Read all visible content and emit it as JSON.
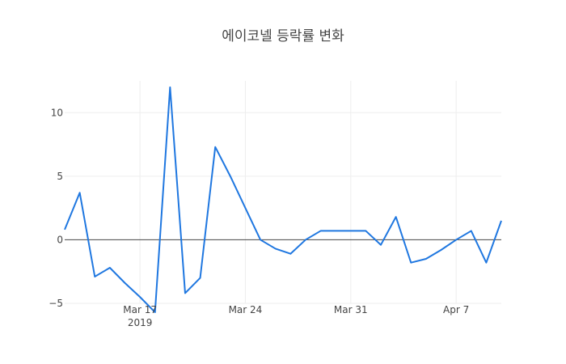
{
  "chart_data": {
    "type": "line",
    "title": "에이코넬 등락률 변화",
    "xlabel": "",
    "ylabel": "",
    "x_range": [
      "2019-03-12",
      "2019-04-10"
    ],
    "ylim": [
      -5.0,
      12.5
    ],
    "x_ticks": [
      {
        "date": "2019-03-17",
        "label": "Mar 17",
        "sublabel": "2019"
      },
      {
        "date": "2019-03-24",
        "label": "Mar 24",
        "sublabel": ""
      },
      {
        "date": "2019-03-31",
        "label": "Mar 31",
        "sublabel": ""
      },
      {
        "date": "2019-04-07",
        "label": "Apr 7",
        "sublabel": ""
      }
    ],
    "y_ticks": [
      {
        "value": -5,
        "label": "−5"
      },
      {
        "value": 0,
        "label": "0"
      },
      {
        "value": 5,
        "label": "5"
      },
      {
        "value": 10,
        "label": "10"
      }
    ],
    "zero_line": true,
    "grid": true,
    "line_color": "#1f77e0",
    "series": [
      {
        "x": [
          "2019-03-12",
          "2019-03-13",
          "2019-03-14",
          "2019-03-15",
          "2019-03-16",
          "2019-03-17",
          "2019-03-18",
          "2019-03-19",
          "2019-03-20",
          "2019-03-21",
          "2019-03-22",
          "2019-03-23",
          "2019-03-24",
          "2019-03-25",
          "2019-03-26",
          "2019-03-27",
          "2019-03-28",
          "2019-03-29",
          "2019-03-30",
          "2019-03-31",
          "2019-04-01",
          "2019-04-02",
          "2019-04-03",
          "2019-04-04",
          "2019-04-05",
          "2019-04-06",
          "2019-04-07",
          "2019-04-08",
          "2019-04-09",
          "2019-04-10"
        ],
        "y": [
          0.8,
          3.7,
          -2.9,
          -2.2,
          -3.4,
          -4.5,
          -5.7,
          12.0,
          -4.2,
          -3.0,
          7.3,
          5.0,
          2.5,
          0.0,
          -0.7,
          -1.1,
          0.0,
          0.7,
          0.7,
          0.7,
          0.7,
          -0.4,
          1.8,
          -1.8,
          -1.5,
          -0.8,
          0.0,
          0.7,
          -1.8,
          1.5
        ]
      }
    ]
  }
}
